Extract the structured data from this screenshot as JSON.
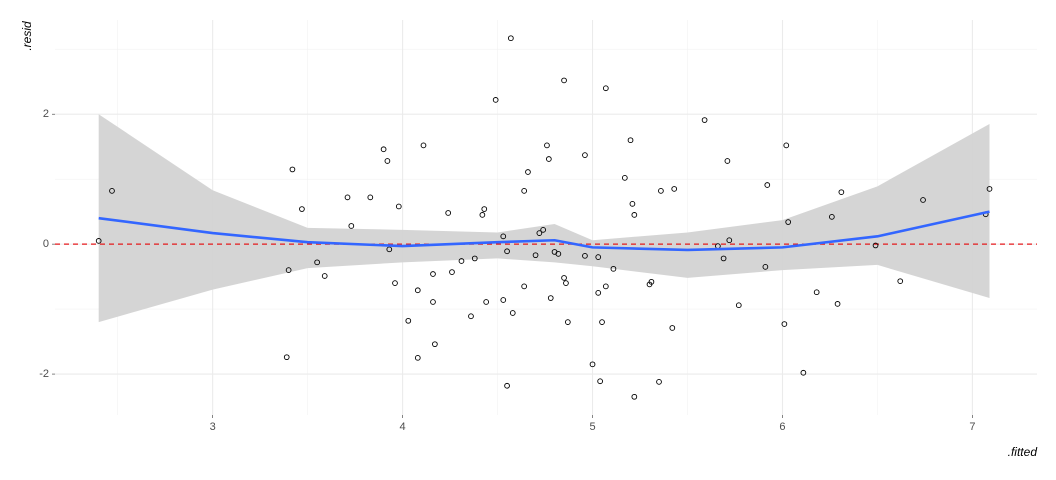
{
  "chart_data": {
    "type": "scatter",
    "x_label": ".fitted",
    "y_label": ".resid",
    "xlim": [
      2.17,
      7.34
    ],
    "ylim": [
      -2.63,
      3.45
    ],
    "xticks": [
      3,
      4,
      5,
      6,
      7
    ],
    "yticks": [
      -2,
      0,
      2
    ],
    "grid": true,
    "hline": {
      "value": 0,
      "color": "#e41a1c"
    },
    "point_color": "#000000",
    "x": [
      2.4,
      2.47,
      3.42,
      3.4,
      3.39,
      3.47,
      3.55,
      3.59,
      3.71,
      3.73,
      3.83,
      3.9,
      3.92,
      3.93,
      3.96,
      3.98,
      4.03,
      4.08,
      4.08,
      4.11,
      4.16,
      4.16,
      4.17,
      4.24,
      4.26,
      4.31,
      4.36,
      4.38,
      4.42,
      4.43,
      4.44,
      4.49,
      4.53,
      4.53,
      4.55,
      4.55,
      4.58,
      4.64,
      4.64,
      4.66,
      4.7,
      4.72,
      4.74,
      4.76,
      4.77,
      4.78,
      4.8,
      4.82,
      4.85,
      4.85,
      4.86,
      4.87,
      4.96,
      4.96,
      5.0,
      5.03,
      5.03,
      5.04,
      5.05,
      5.07,
      5.07,
      5.11,
      5.17,
      5.2,
      5.21,
      5.22,
      5.22,
      5.3,
      5.31,
      5.35,
      5.36,
      5.42,
      5.43,
      5.59,
      5.66,
      5.69,
      5.71,
      5.72,
      5.77,
      5.91,
      5.92,
      6.01,
      6.02,
      6.03,
      6.11,
      6.18,
      6.26,
      6.29,
      6.31,
      6.49,
      6.62,
      6.74,
      7.07,
      7.09,
      4.57
    ],
    "values": [
      0.05,
      0.82,
      1.15,
      -0.4,
      -1.74,
      0.54,
      -0.28,
      -0.49,
      0.72,
      0.28,
      0.72,
      1.46,
      1.28,
      -0.08,
      -0.6,
      0.58,
      -1.18,
      -0.71,
      -1.75,
      1.52,
      -0.46,
      -0.89,
      -1.54,
      0.48,
      -0.43,
      -0.26,
      -1.11,
      -0.22,
      0.45,
      0.54,
      -0.89,
      2.22,
      0.12,
      -0.86,
      -0.11,
      -2.18,
      -1.06,
      0.82,
      -0.65,
      1.11,
      -0.17,
      0.17,
      0.22,
      1.52,
      1.31,
      -0.83,
      -0.12,
      -0.15,
      2.52,
      -0.52,
      -0.6,
      -1.2,
      1.37,
      -0.18,
      -1.85,
      -0.2,
      -0.75,
      -2.11,
      -1.2,
      -0.65,
      2.4,
      -0.38,
      1.02,
      1.6,
      0.62,
      0.45,
      -2.35,
      -0.62,
      -0.58,
      -2.12,
      0.82,
      -1.29,
      0.85,
      1.91,
      -0.03,
      -0.22,
      1.28,
      0.06,
      -0.94,
      -0.35,
      0.91,
      -1.23,
      1.52,
      0.34,
      -1.98,
      -0.74,
      0.42,
      -0.92,
      0.8,
      -0.02,
      -0.57,
      0.68,
      0.46,
      0.85,
      3.17
    ],
    "smooth": {
      "color": "#3366ff",
      "band_color": "#d3d3d3",
      "x": [
        2.4,
        3.0,
        3.5,
        4.0,
        4.5,
        4.8,
        5.0,
        5.5,
        6.0,
        6.5,
        7.09
      ],
      "y": [
        0.4,
        0.17,
        0.03,
        -0.03,
        0.03,
        0.06,
        -0.05,
        -0.09,
        -0.05,
        0.12,
        0.5
      ],
      "ymin": [
        -1.2,
        -0.7,
        -0.37,
        -0.28,
        -0.22,
        -0.28,
        -0.34,
        -0.52,
        -0.4,
        -0.32,
        -0.83
      ],
      "ymax": [
        2.0,
        0.83,
        0.25,
        0.22,
        0.18,
        0.31,
        0.06,
        0.18,
        0.37,
        0.89,
        1.85
      ]
    }
  }
}
